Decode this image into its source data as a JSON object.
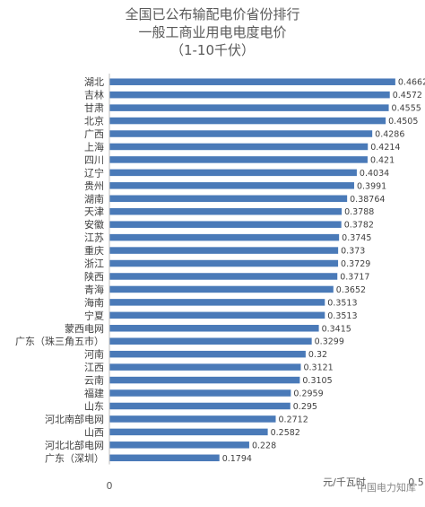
{
  "chart_data": {
    "type": "bar",
    "orientation": "horizontal",
    "title": [
      "全国已公布输配电价省份排行",
      "一般工商业用电电度电价",
      "（1-10千伏）"
    ],
    "categories": [
      "湖北",
      "吉林",
      "甘肃",
      "北京",
      "广西",
      "上海",
      "四川",
      "辽宁",
      "贵州",
      "湖南",
      "天津",
      "安徽",
      "江苏",
      "重庆",
      "浙江",
      "陕西",
      "青海",
      "海南",
      "宁夏",
      "蒙西电网",
      "广东（珠三角五市）",
      "河南",
      "江西",
      "云南",
      "福建",
      "山东",
      "河北南部电网",
      "山西",
      "河北北部电网",
      "广东（深圳）"
    ],
    "values": [
      0.4662,
      0.4572,
      0.4555,
      0.4505,
      0.4286,
      0.4214,
      0.421,
      0.4034,
      0.3991,
      0.38764,
      0.3788,
      0.3782,
      0.3745,
      0.373,
      0.3729,
      0.3717,
      0.3652,
      0.3513,
      0.3513,
      0.3415,
      0.3299,
      0.32,
      0.3121,
      0.3105,
      0.2959,
      0.295,
      0.2712,
      0.2582,
      0.228,
      0.1794
    ],
    "value_labels": [
      "0.4662",
      "0.4572",
      "0.4555",
      "0.4505",
      "0.4286",
      "0.4214",
      "0.421",
      "0.4034",
      "0.3991",
      "0.38764",
      "0.3788",
      "0.3782",
      "0.3745",
      "0.373",
      "0.3729",
      "0.3717",
      "0.3652",
      "0.3513",
      "0.3513",
      "0.3415",
      "0.3299",
      "0.32",
      "0.3121",
      "0.3105",
      "0.2959",
      "0.295",
      "0.2712",
      "0.2582",
      "0.228",
      "0.1794"
    ],
    "xlim": [
      0,
      0.5
    ],
    "x_tick_labels": [
      "0",
      "0.5"
    ],
    "unit_label": "元/千瓦时",
    "bar_color": "#4a7ab8",
    "grid": false
  },
  "watermark": "中国电力知库"
}
